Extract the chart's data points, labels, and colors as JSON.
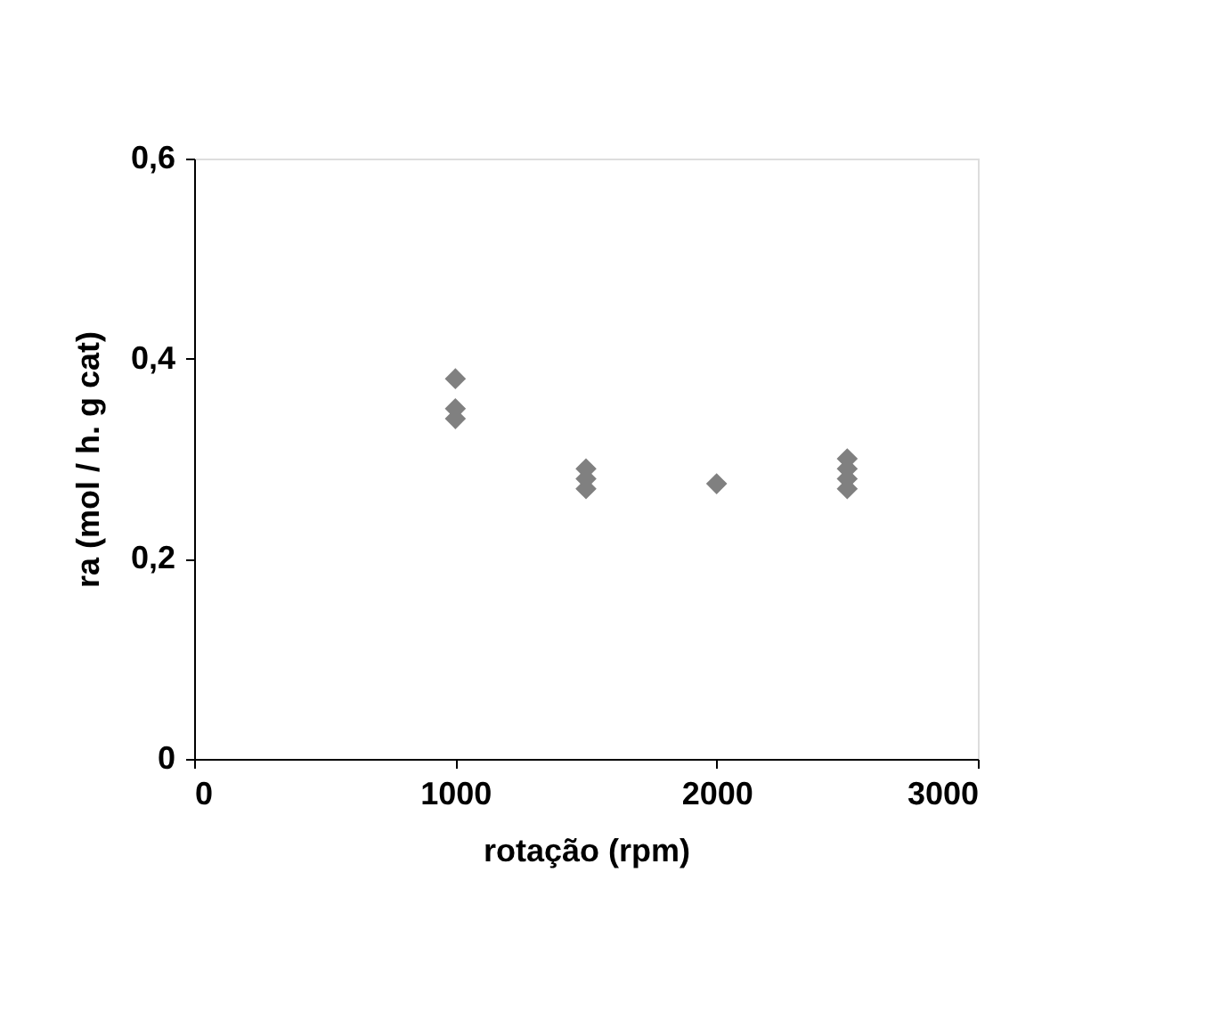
{
  "chart_data": {
    "type": "scatter",
    "xlabel": "rotação (rpm)",
    "ylabel": "ra (mol / h. g cat)",
    "x": [
      1000,
      1000,
      1000,
      1500,
      1500,
      1500,
      2000,
      2500,
      2500,
      2500,
      2500
    ],
    "values": [
      0.38,
      0.35,
      0.34,
      0.29,
      0.28,
      0.27,
      0.275,
      0.3,
      0.29,
      0.28,
      0.27
    ],
    "color": "#808080",
    "marker": "diamond",
    "xlim": [
      0,
      3000
    ],
    "xticks": [
      0,
      1000,
      2000,
      3000
    ],
    "ylim": [
      0,
      0.6
    ],
    "yticks": [
      {
        "value": 0,
        "label": "0"
      },
      {
        "value": 0.2,
        "label": "0,2"
      },
      {
        "value": 0.4,
        "label": "0,4"
      },
      {
        "value": 0.6,
        "label": "0,6"
      }
    ],
    "grid": false
  }
}
